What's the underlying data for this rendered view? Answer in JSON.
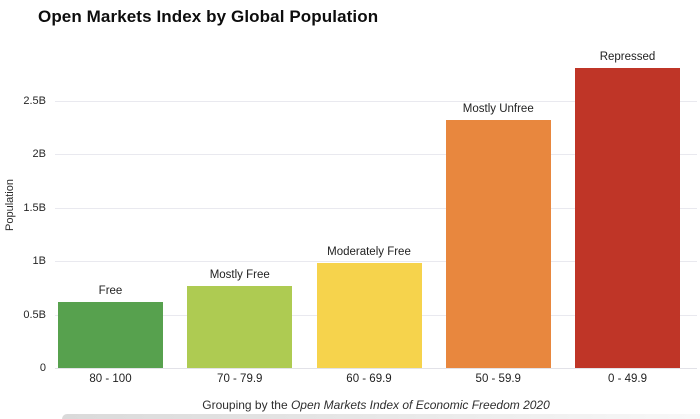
{
  "page": {
    "title": "Open Markets Index by Global Population"
  },
  "caption": {
    "prefix": "Grouping by the ",
    "italic": "Open Markets Index of Economic Freedom 2020"
  },
  "chart_data": {
    "type": "bar",
    "title": "Open Markets Index by Global Population",
    "categories": [
      "80 - 100",
      "70 - 79.9",
      "60 - 69.9",
      "50 - 59.9",
      "0 - 49.9"
    ],
    "bar_labels": [
      "Free",
      "Mostly Free",
      "Moderately Free",
      "Mostly Unfree",
      "Repressed"
    ],
    "series": [
      {
        "name": "Population",
        "values": [
          0.62,
          0.77,
          0.98,
          2.32,
          2.8
        ]
      }
    ],
    "bar_colors": [
      "#57a14e",
      "#aecb52",
      "#f6d34c",
      "#e8873e",
      "#bf3527"
    ],
    "xlabel": "Grouping by the Open Markets Index of Economic Freedom 2020",
    "ylabel": "Population",
    "ylim": [
      0,
      2.8
    ],
    "yticks": [
      0,
      0.5,
      1,
      1.5,
      2,
      2.5
    ],
    "ytick_labels": [
      "0",
      "0.5B",
      "1B",
      "1.5B",
      "2B",
      "2.5B"
    ],
    "grid": true,
    "legend": false
  },
  "colors": {
    "background": "#ffffff",
    "gridline": "#e9e9ef",
    "text": "#1f1f1f",
    "title": "#0d0d0d"
  }
}
